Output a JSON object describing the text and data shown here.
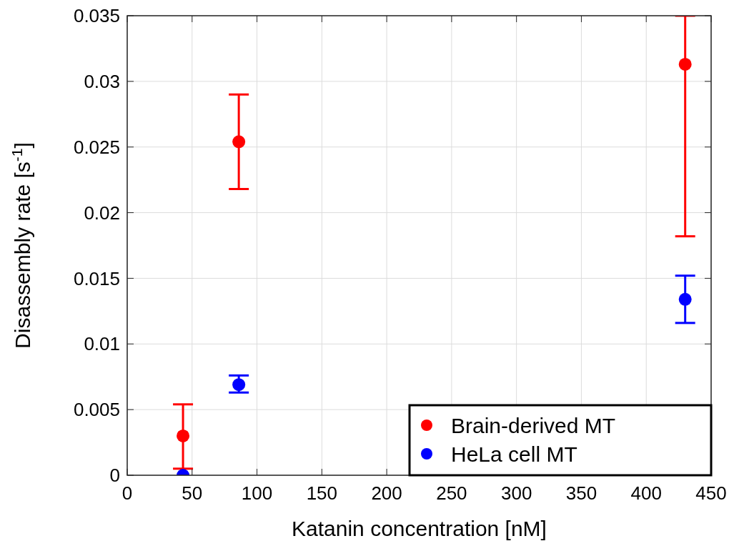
{
  "chart_data": {
    "type": "scatter",
    "xlabel": "Katanin concentration [nM]",
    "ylabel": "Disassembly rate [s$^{-1}$]",
    "xlim": [
      0,
      450
    ],
    "xticks": [
      0,
      50,
      100,
      150,
      200,
      250,
      300,
      350,
      400,
      450
    ],
    "ylim": [
      0,
      0.035
    ],
    "yticks": [
      0,
      0.005,
      0.01,
      0.015,
      0.02,
      0.025,
      0.03,
      0.035
    ],
    "grid": true,
    "legend": "bottom right",
    "marker": "circle",
    "series": [
      {
        "name": "Brain-derived MT",
        "color": "#ff0000",
        "x": [
          43,
          86,
          430
        ],
        "values": [
          0.003,
          0.0254,
          0.0313
        ],
        "errors": [
          [
            0.0005,
            0.0054
          ],
          [
            0.0218,
            0.029
          ],
          [
            0.0182,
            0.035
          ]
        ]
      },
      {
        "name": "HeLa cell MT",
        "color": "#0000ff",
        "x": [
          43,
          86,
          430
        ],
        "values": [
          0,
          0.0069,
          0.0134
        ],
        "errors": [
          null,
          [
            0.0063,
            0.0076
          ],
          [
            0.0116,
            0.0152
          ]
        ]
      }
    ]
  }
}
